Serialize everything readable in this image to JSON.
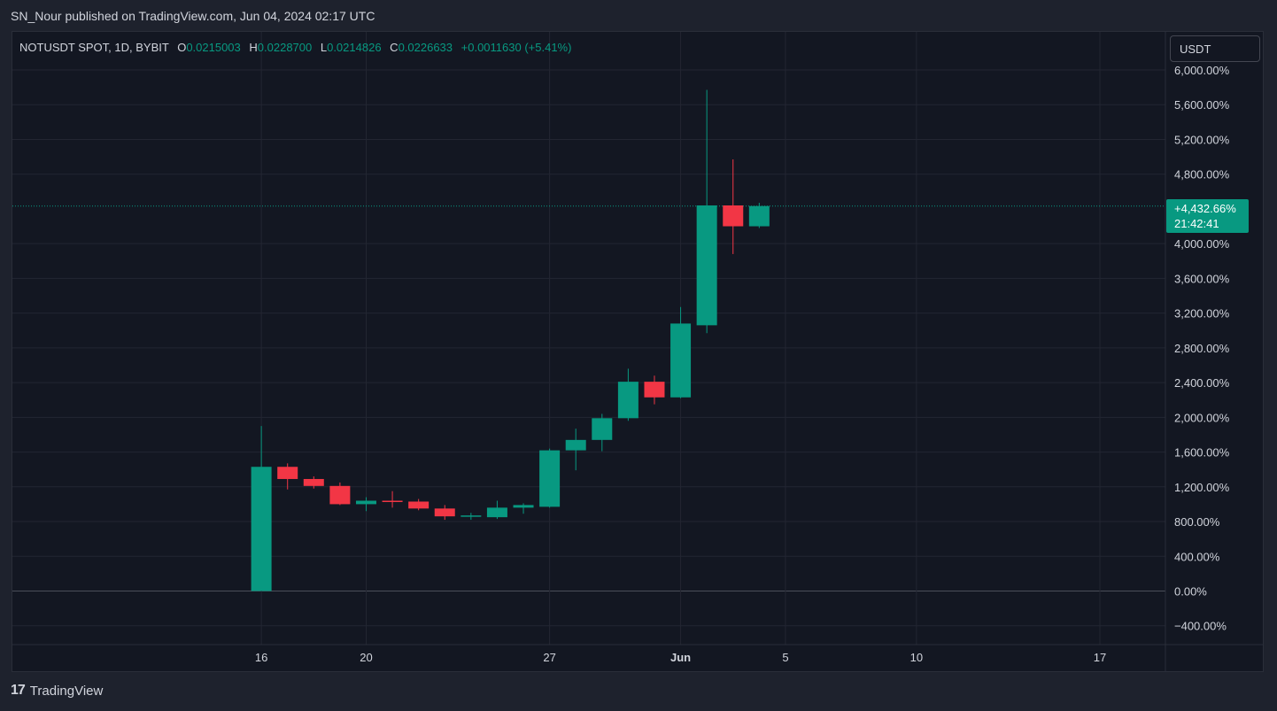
{
  "header": {
    "published_text": "SN_Nour published on TradingView.com, Jun 04, 2024 02:17 UTC"
  },
  "legend": {
    "symbol": "NOTUSDT SPOT, 1D, BYBIT",
    "open_label": "O",
    "open_value": "0.0215003",
    "high_label": "H",
    "high_value": "0.0228700",
    "low_label": "L",
    "low_value": "0.0214826",
    "close_label": "C",
    "close_value": "0.0226633",
    "change": "+0.0011630 (+5.41%)"
  },
  "toolbar": {
    "currency_label": "USDT"
  },
  "price_tag": {
    "value": "+4,432.66%",
    "countdown": "21:42:41"
  },
  "footer": {
    "brand": "TradingView"
  },
  "colors": {
    "up": "#089981",
    "down": "#f23645",
    "grid": "#232632",
    "axis_text": "#d1d4dc"
  },
  "chart_data": {
    "type": "candlestick",
    "y_unit": "%",
    "ylim": [
      -400,
      6000
    ],
    "y_ticks": [
      {
        "value": 6000,
        "label": "6,000.00%"
      },
      {
        "value": 5600,
        "label": "5,600.00%"
      },
      {
        "value": 5200,
        "label": "5,200.00%"
      },
      {
        "value": 4800,
        "label": "4,800.00%"
      },
      {
        "value": 4000,
        "label": "4,000.00%"
      },
      {
        "value": 3600,
        "label": "3,600.00%"
      },
      {
        "value": 3200,
        "label": "3,200.00%"
      },
      {
        "value": 2800,
        "label": "2,800.00%"
      },
      {
        "value": 2400,
        "label": "2,400.00%"
      },
      {
        "value": 2000,
        "label": "2,000.00%"
      },
      {
        "value": 1600,
        "label": "1,600.00%"
      },
      {
        "value": 1200,
        "label": "1,200.00%"
      },
      {
        "value": 800,
        "label": "800.00%"
      },
      {
        "value": 400,
        "label": "400.00%"
      },
      {
        "value": 0,
        "label": "0.00%"
      },
      {
        "value": -400,
        "label": "−400.00%"
      }
    ],
    "x_ticks": [
      {
        "day": 0,
        "label": "16",
        "bold": false
      },
      {
        "day": 4,
        "label": "20",
        "bold": false
      },
      {
        "day": 11,
        "label": "27",
        "bold": false
      },
      {
        "day": 16,
        "label": "Jun",
        "bold": true
      },
      {
        "day": 20,
        "label": "5",
        "bold": false
      },
      {
        "day": 25,
        "label": "10",
        "bold": false
      },
      {
        "day": 32,
        "label": "17",
        "bold": false
      }
    ],
    "xlim": [
      -9.5,
      34.5
    ],
    "candles": [
      {
        "day": 0,
        "o": 0,
        "h": 1900,
        "l": 0,
        "c": 1430
      },
      {
        "day": 1,
        "o": 1430,
        "h": 1470,
        "l": 1170,
        "c": 1290
      },
      {
        "day": 2,
        "o": 1290,
        "h": 1320,
        "l": 1180,
        "c": 1210
      },
      {
        "day": 3,
        "o": 1210,
        "h": 1250,
        "l": 990,
        "c": 1000
      },
      {
        "day": 4,
        "o": 1000,
        "h": 1080,
        "l": 920,
        "c": 1040
      },
      {
        "day": 5,
        "o": 1040,
        "h": 1150,
        "l": 960,
        "c": 1030
      },
      {
        "day": 6,
        "o": 1030,
        "h": 1060,
        "l": 930,
        "c": 950
      },
      {
        "day": 7,
        "o": 950,
        "h": 990,
        "l": 820,
        "c": 860
      },
      {
        "day": 8,
        "o": 860,
        "h": 900,
        "l": 820,
        "c": 870
      },
      {
        "day": 9,
        "o": 850,
        "h": 1040,
        "l": 830,
        "c": 960
      },
      {
        "day": 10,
        "o": 960,
        "h": 1010,
        "l": 890,
        "c": 990
      },
      {
        "day": 11,
        "o": 970,
        "h": 1640,
        "l": 960,
        "c": 1620
      },
      {
        "day": 12,
        "o": 1620,
        "h": 1870,
        "l": 1390,
        "c": 1740
      },
      {
        "day": 13,
        "o": 1740,
        "h": 2040,
        "l": 1610,
        "c": 1990
      },
      {
        "day": 14,
        "o": 1990,
        "h": 2560,
        "l": 1960,
        "c": 2410
      },
      {
        "day": 15,
        "o": 2410,
        "h": 2480,
        "l": 2150,
        "c": 2230
      },
      {
        "day": 16,
        "o": 2230,
        "h": 3270,
        "l": 2220,
        "c": 3080
      },
      {
        "day": 17,
        "o": 3060,
        "h": 5770,
        "l": 2970,
        "c": 4440
      },
      {
        "day": 18,
        "o": 4440,
        "h": 4970,
        "l": 3880,
        "c": 4200
      },
      {
        "day": 19,
        "o": 4200,
        "h": 4470,
        "l": 4180,
        "c": 4433
      }
    ],
    "last_value": 4432.66
  }
}
